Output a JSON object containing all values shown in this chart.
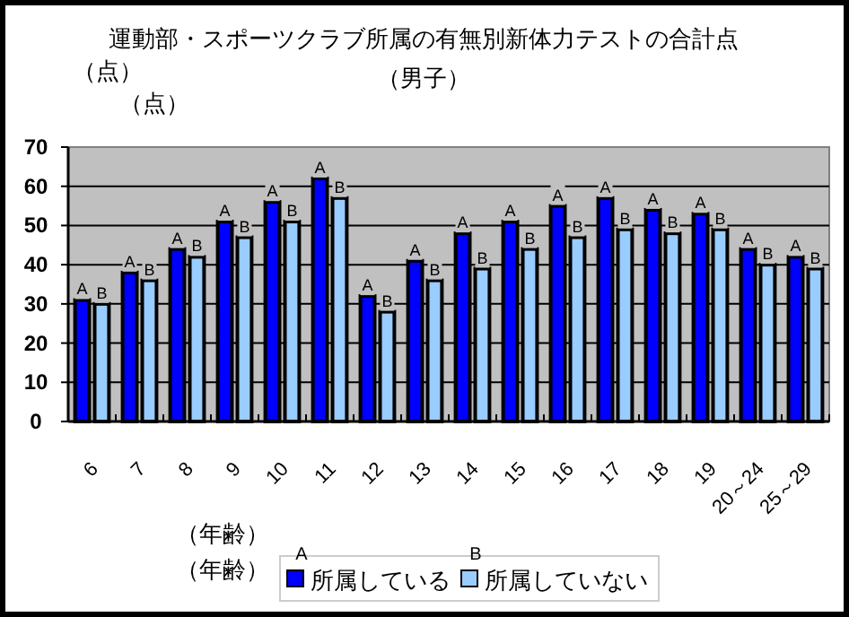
{
  "chart_data": {
    "type": "bar",
    "title": "運動部・スポーツクラブ所属の有無別新体力テストの合計点",
    "subtitle": "（男子）",
    "ylabel": "（点）",
    "xlabel": "（年齢）",
    "annotations": [
      "（点）",
      "（年齢）",
      "A",
      "B"
    ],
    "categories": [
      "6",
      "7",
      "8",
      "9",
      "10",
      "11",
      "12",
      "13",
      "14",
      "15",
      "16",
      "17",
      "18",
      "19",
      "20～24",
      "25～29"
    ],
    "series": [
      {
        "name": "所属している",
        "color": "#0000ff",
        "values": [
          31,
          38,
          44,
          51,
          56,
          62,
          32,
          41,
          48,
          51,
          55,
          57,
          54,
          53,
          44,
          42
        ],
        "value_labels": [
          "A",
          "A",
          "A",
          "A",
          "A",
          "A",
          "A",
          "A",
          "A",
          "A",
          "A",
          "A",
          "A",
          "A",
          "A",
          "A"
        ]
      },
      {
        "name": "所属していない",
        "color": "#99ccff",
        "values": [
          30,
          36,
          42,
          47,
          51,
          57,
          28,
          36,
          39,
          44,
          47,
          49,
          48,
          49,
          40,
          39
        ],
        "value_labels": [
          "B",
          "B",
          "B",
          "B",
          "B",
          "B",
          "B",
          "B",
          "B",
          "B",
          "B",
          "B",
          "B",
          "B",
          "B",
          "B"
        ]
      }
    ],
    "ylim": [
      0,
      70
    ],
    "yticks": [
      0,
      10,
      20,
      30,
      40,
      50,
      60,
      70
    ],
    "grid": "y",
    "legend": "bottom"
  }
}
